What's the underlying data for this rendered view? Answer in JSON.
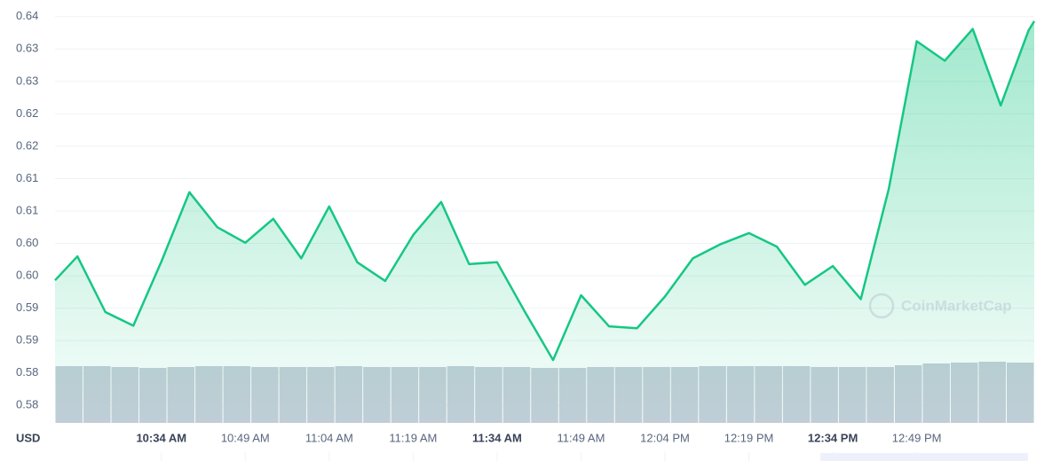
{
  "chart_data": {
    "type": "line",
    "color": "#16c784",
    "unit_label": "USD",
    "watermark": "CoinMarketCap",
    "x": [
      615,
      619,
      624,
      629,
      634,
      639,
      644,
      649,
      654,
      659,
      664,
      669,
      674,
      679,
      684,
      689,
      694,
      699,
      704,
      709,
      714,
      719,
      724,
      729,
      734,
      739,
      744,
      749,
      754,
      759,
      764,
      769,
      774,
      779,
      784,
      789,
      790
    ],
    "values": [
      0.5993,
      0.603,
      0.5944,
      0.5923,
      0.6022,
      0.6129,
      0.6075,
      0.6051,
      0.6088,
      0.6027,
      0.6107,
      0.6021,
      0.5992,
      0.6063,
      0.6114,
      0.6018,
      0.6021,
      0.5944,
      0.587,
      0.597,
      0.5922,
      0.5919,
      0.5968,
      0.6027,
      0.6049,
      0.6066,
      0.6045,
      0.5986,
      0.6015,
      0.5964,
      0.6134,
      0.6362,
      0.6332,
      0.6381,
      0.6263,
      0.6379,
      0.6393
    ],
    "xlim": [
      615,
      790
    ],
    "xticks": [
      {
        "value": 634,
        "label": "10:34 AM"
      },
      {
        "value": 649,
        "label": "10:49 AM"
      },
      {
        "value": 664,
        "label": "11:04 AM"
      },
      {
        "value": 679,
        "label": "11:19 AM"
      },
      {
        "value": 694,
        "label": "11:34 AM"
      },
      {
        "value": 709,
        "label": "11:49 AM"
      },
      {
        "value": 724,
        "label": "12:04 PM"
      },
      {
        "value": 739,
        "label": "12:19 PM"
      },
      {
        "value": 754,
        "label": "12:34 PM"
      },
      {
        "value": 769,
        "label": "12:49 PM"
      }
    ],
    "ylim": [
      0.5773,
      0.6412
    ],
    "yticks": [
      {
        "value": 0.58,
        "label": "0.58"
      },
      {
        "value": 0.585,
        "label": "0.58"
      },
      {
        "value": 0.59,
        "label": "0.59"
      },
      {
        "value": 0.595,
        "label": "0.59"
      },
      {
        "value": 0.6,
        "label": "0.60"
      },
      {
        "value": 0.605,
        "label": "0.60"
      },
      {
        "value": 0.61,
        "label": "0.61"
      },
      {
        "value": 0.615,
        "label": "0.61"
      },
      {
        "value": 0.62,
        "label": "0.62"
      },
      {
        "value": 0.625,
        "label": "0.62"
      },
      {
        "value": 0.63,
        "label": "0.63"
      },
      {
        "value": 0.635,
        "label": "0.63"
      },
      {
        "value": 0.64,
        "label": "0.64"
      }
    ],
    "grid": true,
    "volume": {
      "color": "#c5ced9",
      "y2lim": [
        0,
        467
      ],
      "values": [
        64,
        64,
        63,
        62,
        63,
        64,
        64,
        63,
        63,
        63,
        64,
        63,
        63,
        63,
        64,
        63,
        63,
        62,
        62,
        63,
        63,
        63,
        63,
        64,
        64,
        64,
        64,
        63,
        63,
        63,
        65,
        67,
        68,
        69,
        68
      ]
    }
  }
}
